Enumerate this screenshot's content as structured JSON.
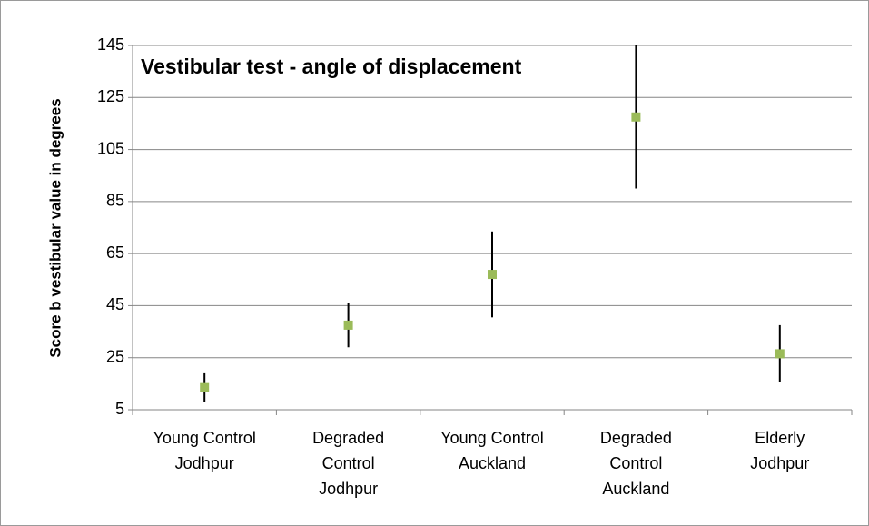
{
  "chart_data": {
    "type": "errorbar",
    "title": "Vestibular test - angle of displacement",
    "y_label": "Score b vestibular value in degrees",
    "categories": [
      "Young Control Jodhpur",
      "Degraded Control Jodhpur",
      "Young Control Auckland",
      "Degraded Control Auckland",
      "Elderly Jodhpur"
    ],
    "values": [
      13.5,
      37.5,
      57,
      117.5,
      26.5
    ],
    "errors": [
      5.5,
      8.5,
      16.5,
      27.5,
      11
    ],
    "color": "#9bbb59",
    "ylim": [
      5,
      145
    ],
    "yticks": [
      5,
      25,
      45,
      65,
      85,
      105,
      125,
      145
    ],
    "grid": true
  }
}
